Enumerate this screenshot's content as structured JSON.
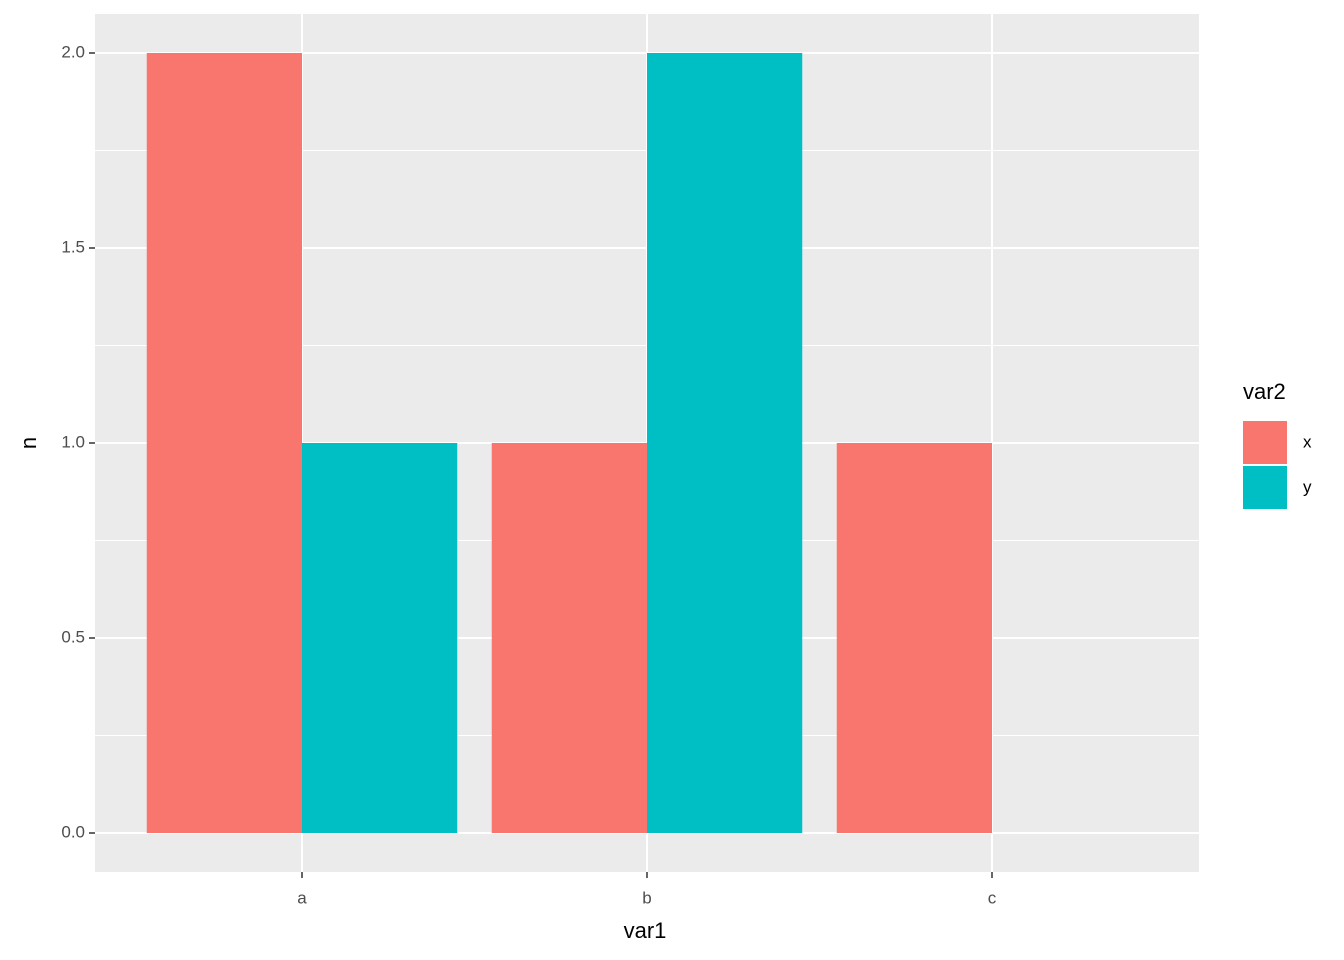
{
  "chart_data": {
    "type": "bar",
    "categories": [
      "a",
      "b",
      "c"
    ],
    "series": [
      {
        "name": "x",
        "color": "#f8766d",
        "values": [
          2,
          1,
          1
        ]
      },
      {
        "name": "y",
        "color": "#00bfc4",
        "values": [
          1,
          2,
          null
        ]
      }
    ],
    "x_label": "var1",
    "y_label": "n",
    "legend_title": "var2",
    "ylim": [
      -0.1,
      2.1
    ],
    "yticks": [
      {
        "value": 0,
        "label": "0.0"
      },
      0.5,
      {
        "value": 1,
        "label": "1.0"
      },
      1.5,
      {
        "value": 2,
        "label": "2.0"
      }
    ],
    "grid": true,
    "legend_position": "right"
  }
}
